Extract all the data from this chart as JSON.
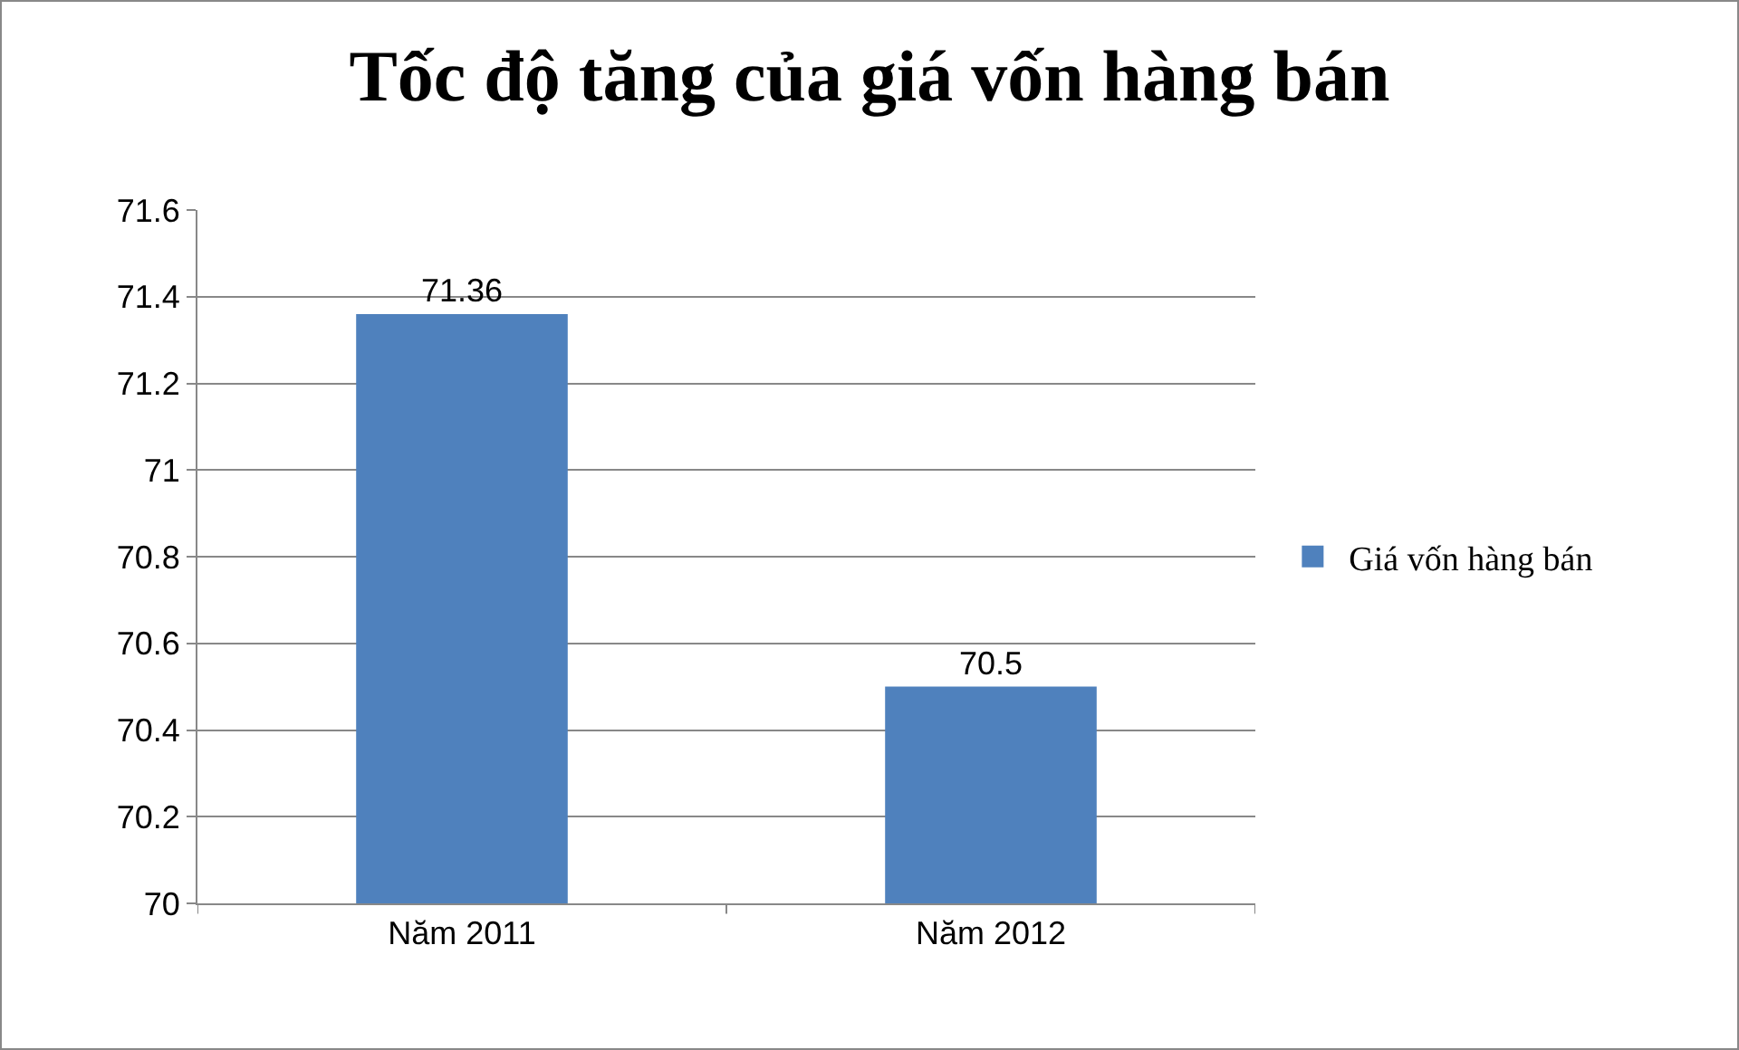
{
  "chart_data": {
    "type": "bar",
    "title": "Tốc độ tăng của giá vốn hàng bán",
    "categories": [
      "Năm 2011",
      "Năm 2012"
    ],
    "series": [
      {
        "name": "Giá vốn hàng bán",
        "color": "#4f81bd",
        "values": [
          71.36,
          70.5
        ]
      }
    ],
    "ylim": [
      70,
      71.6
    ],
    "yticks": [
      70,
      70.2,
      70.4,
      70.6,
      70.8,
      71,
      71.2,
      71.4,
      71.6
    ],
    "grid": "y",
    "legend": "right",
    "data_labels": true
  }
}
